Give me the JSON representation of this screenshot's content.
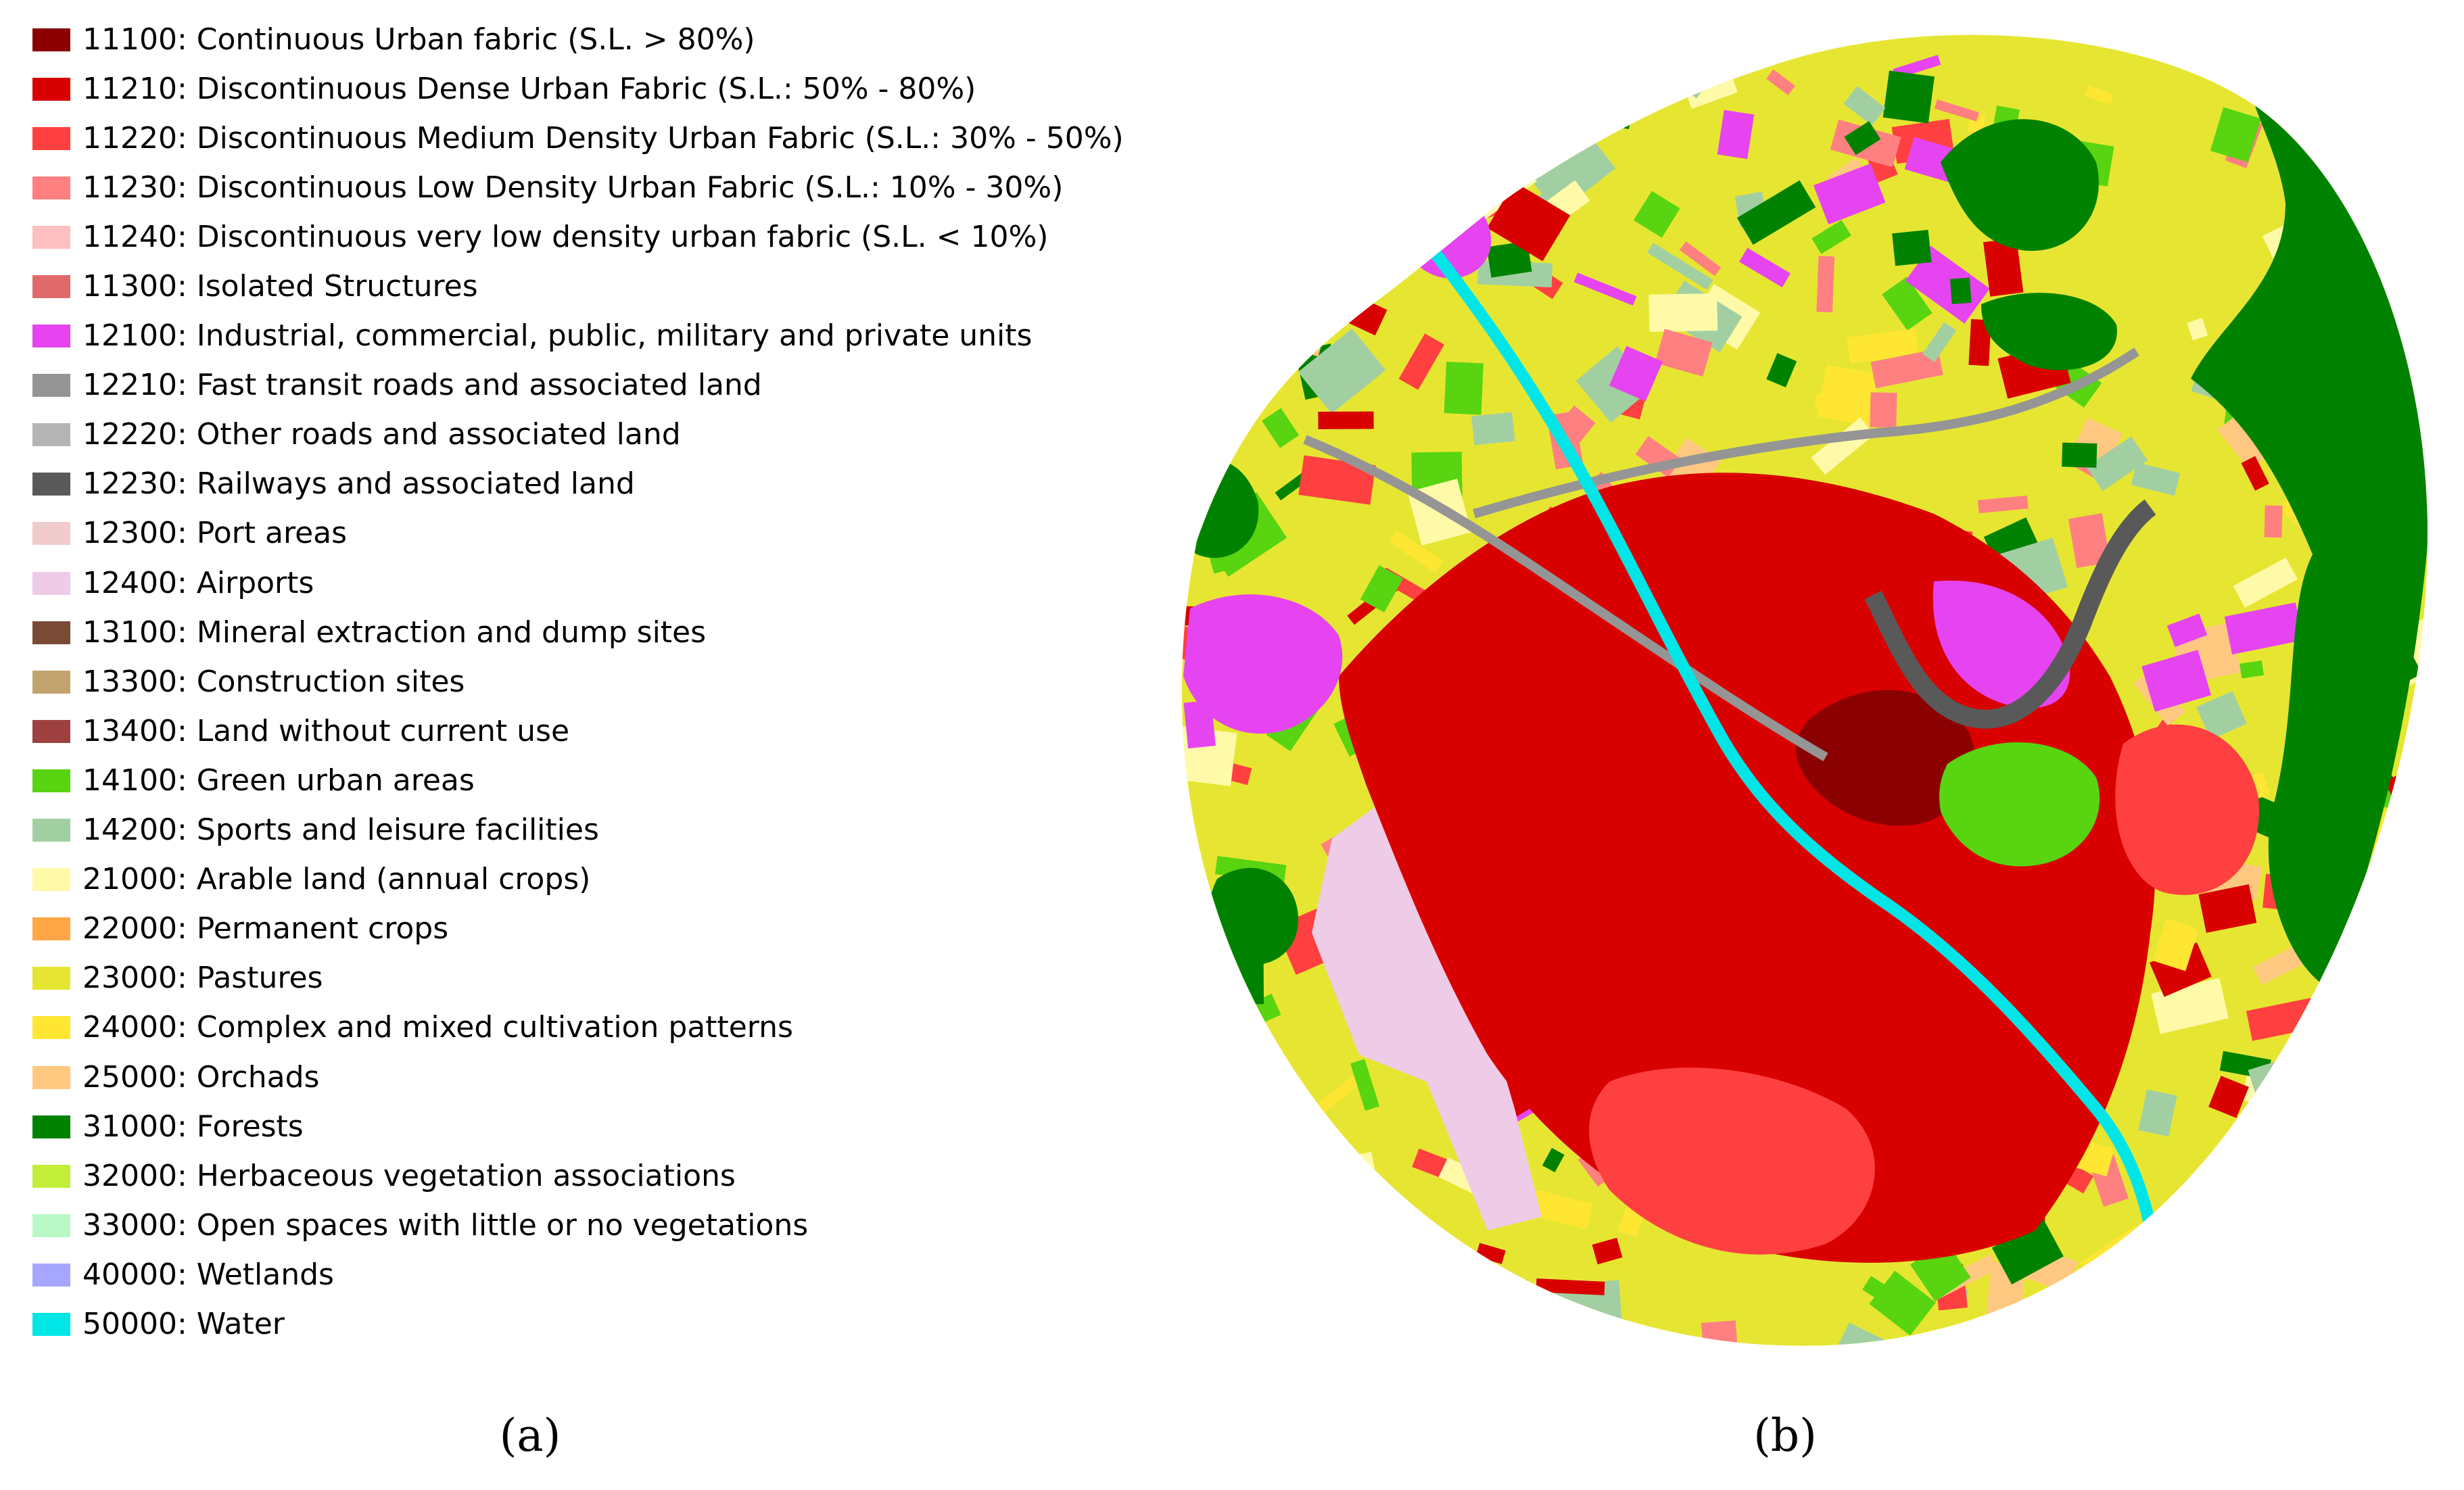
{
  "legend": {
    "items": [
      {
        "label": "11100: Continuous Urban fabric (S.L. > 80%)",
        "color": "#8b0000"
      },
      {
        "label": "11210: Discontinuous Dense Urban Fabric (S.L.: 50% - 80%)",
        "color": "#d90000"
      },
      {
        "label": "11220: Discontinuous Medium Density Urban Fabric (S.L.: 30% - 50%)",
        "color": "#ff4040"
      },
      {
        "label": "11230: Discontinuous Low Density Urban Fabric (S.L.: 10% - 30%)",
        "color": "#fe8080"
      },
      {
        "label": "11240: Discontinuous very low density urban fabric (S.L. < 10%)",
        "color": "#fdbfbf"
      },
      {
        "label": "11300: Isolated Structures",
        "color": "#e06a6a"
      },
      {
        "label": "12100: Industrial, commercial, public, military and private units",
        "color": "#e544f0"
      },
      {
        "label": "12210: Fast transit roads and associated land",
        "color": "#959595"
      },
      {
        "label": "12220: Other roads and associated land",
        "color": "#b4b4b4"
      },
      {
        "label": "12230: Railways and associated land",
        "color": "#595959"
      },
      {
        "label": "12300: Port areas",
        "color": "#f0cccc"
      },
      {
        "label": "12400: Airports",
        "color": "#eecbe6"
      },
      {
        "label": "13100: Mineral extraction and dump sites",
        "color": "#7a4a36"
      },
      {
        "label": "13300: Construction sites",
        "color": "#c4a46e"
      },
      {
        "label": "13400: Land without current use",
        "color": "#9e4040"
      },
      {
        "label": "14100: Green urban areas",
        "color": "#58d411"
      },
      {
        "label": "14200: Sports and leisure facilities",
        "color": "#a2cfa2"
      },
      {
        "label": "21000: Arable land (annual crops)",
        "color": "#fffaa8"
      },
      {
        "label": "22000: Permanent crops",
        "color": "#ffa646"
      },
      {
        "label": "23000: Pastures",
        "color": "#e6e632"
      },
      {
        "label": "24000: Complex and mixed cultivation patterns",
        "color": "#ffe632"
      },
      {
        "label": "25000: Orchads",
        "color": "#ffc880"
      },
      {
        "label": "31000: Forests",
        "color": "#008200"
      },
      {
        "label": "32000: Herbaceous vegetation associations",
        "color": "#c2ee3a"
      },
      {
        "label": "33000: Open spaces with little or no vegetations",
        "color": "#b9f7c7"
      },
      {
        "label": "40000: Wetlands",
        "color": "#a6a6ff"
      },
      {
        "label": "50000: Water",
        "color": "#00e6e6"
      }
    ]
  },
  "captions": {
    "a": "(a)",
    "b": "(b)"
  }
}
